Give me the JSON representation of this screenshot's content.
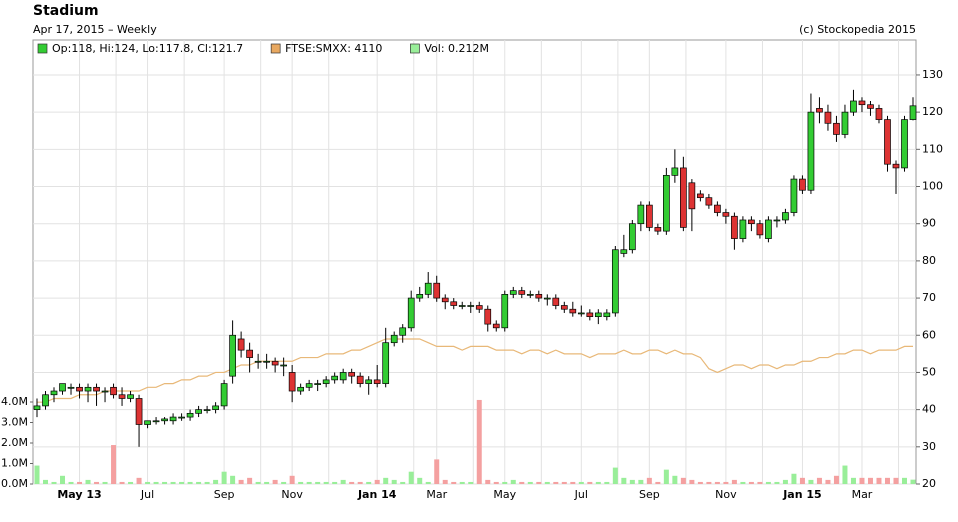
{
  "chart_data": {
    "type": "candlestick",
    "title": "Stadium",
    "subtitle": "Apr 17, 2015 – Weekly",
    "credit": "(c) Stockopedia 2015",
    "legend": [
      {
        "label": "Op:118, Hi:124, Lo:117.8, Cl:121.7",
        "color": "#33cc33"
      },
      {
        "label": "FTSE:SMXX: 4110",
        "color": "#e8a860"
      },
      {
        "label": "Vol: 0.212M",
        "color": "#99ee99"
      }
    ],
    "up_color": "#33cc33",
    "down_color": "#dd3333",
    "vol_up_color": "#99ee99",
    "vol_down_color": "#f4a0a0",
    "ftse_color": "#e8b878",
    "ylim": [
      20,
      139.4
    ],
    "yticks": [
      20,
      30,
      40,
      50,
      60,
      70,
      80,
      90,
      100,
      110,
      120,
      130
    ],
    "vlim": [
      0,
      21.66
    ],
    "vticks": [
      {
        "value": 0,
        "label": "0.0M"
      },
      {
        "value": 1,
        "label": "1.0M"
      },
      {
        "value": 2,
        "label": "2.0M"
      },
      {
        "value": 3,
        "label": "3.0M"
      },
      {
        "value": 4,
        "label": "4.0M"
      }
    ],
    "categories": [
      null,
      null,
      null,
      null,
      null,
      "May 13",
      null,
      null,
      null,
      null,
      null,
      null,
      null,
      "Jul",
      null,
      null,
      null,
      null,
      null,
      null,
      null,
      null,
      "Sep",
      null,
      null,
      null,
      null,
      null,
      null,
      null,
      "Nov",
      null,
      null,
      null,
      null,
      null,
      null,
      null,
      null,
      null,
      "Jan 14",
      null,
      null,
      null,
      null,
      null,
      null,
      "Mar",
      null,
      null,
      null,
      null,
      null,
      null,
      null,
      "May",
      null,
      null,
      null,
      null,
      null,
      null,
      null,
      null,
      "Jul",
      null,
      null,
      null,
      null,
      null,
      null,
      null,
      "Sep",
      null,
      null,
      null,
      null,
      null,
      null,
      null,
      null,
      "Nov",
      null,
      null,
      null,
      null,
      null,
      null,
      null,
      null,
      "Jan 15",
      null,
      null,
      null,
      null,
      null,
      null,
      "Mar",
      null,
      null,
      null,
      null,
      null,
      null
    ],
    "ohlc": [
      [
        40,
        43,
        38,
        41
      ],
      [
        41,
        45,
        40,
        44
      ],
      [
        44,
        46,
        42,
        45
      ],
      [
        45,
        47,
        44,
        47
      ],
      [
        46,
        47,
        44,
        46
      ],
      [
        46,
        47,
        43,
        45
      ],
      [
        45,
        47,
        42,
        46
      ],
      [
        46,
        47,
        41,
        45
      ],
      [
        45,
        46,
        42,
        45
      ],
      [
        46,
        47,
        43,
        44
      ],
      [
        44,
        46,
        41,
        43
      ],
      [
        43,
        45,
        42,
        44
      ],
      [
        43,
        44,
        30,
        36
      ],
      [
        36,
        37,
        35,
        37
      ],
      [
        37,
        38,
        36,
        37
      ],
      [
        37,
        38,
        36,
        37.5
      ],
      [
        37,
        39,
        36,
        38
      ],
      [
        38,
        39,
        37,
        38
      ],
      [
        38,
        40,
        37,
        39
      ],
      [
        39,
        41,
        38,
        40
      ],
      [
        40,
        41,
        39,
        40
      ],
      [
        40,
        42,
        39,
        41
      ],
      [
        41,
        48,
        40,
        47
      ],
      [
        49,
        64,
        47,
        60
      ],
      [
        59,
        61,
        54,
        56
      ],
      [
        56,
        58,
        50,
        54
      ],
      [
        53,
        55,
        51,
        53
      ],
      [
        53,
        55,
        51,
        53
      ],
      [
        53,
        54,
        50,
        52
      ],
      [
        52,
        54,
        49,
        52
      ],
      [
        50,
        52,
        42,
        45
      ],
      [
        45,
        47,
        44,
        46
      ],
      [
        46,
        48,
        45,
        47
      ],
      [
        47,
        48,
        45,
        47
      ],
      [
        47,
        49,
        46,
        48
      ],
      [
        48,
        50,
        47,
        49
      ],
      [
        48,
        51,
        47,
        50
      ],
      [
        50,
        51,
        47,
        49
      ],
      [
        49,
        50,
        46,
        47
      ],
      [
        47,
        49,
        44,
        48
      ],
      [
        48,
        52,
        46,
        47
      ],
      [
        47,
        62,
        46,
        58
      ],
      [
        58,
        61,
        57,
        60
      ],
      [
        60,
        63,
        58,
        62
      ],
      [
        62,
        72,
        61,
        70
      ],
      [
        70,
        73,
        69,
        71
      ],
      [
        71,
        77,
        70,
        74
      ],
      [
        74,
        76,
        69,
        70
      ],
      [
        70,
        71,
        67,
        69
      ],
      [
        69,
        70,
        67,
        68
      ],
      [
        68,
        69,
        67,
        68
      ],
      [
        68,
        69,
        66,
        68
      ],
      [
        68,
        69,
        66,
        67
      ],
      [
        67,
        68,
        61,
        63
      ],
      [
        63,
        64,
        61,
        62
      ],
      [
        62,
        72,
        61,
        71
      ],
      [
        71,
        73,
        70,
        72
      ],
      [
        72,
        73,
        70,
        71
      ],
      [
        71,
        72,
        70,
        71
      ],
      [
        71,
        72,
        69,
        70
      ],
      [
        70,
        71,
        68,
        70
      ],
      [
        70,
        71,
        67,
        68
      ],
      [
        68,
        69,
        66,
        67
      ],
      [
        67,
        69,
        65,
        66
      ],
      [
        66,
        68,
        65,
        66
      ],
      [
        66,
        67,
        64,
        65
      ],
      [
        65,
        67,
        63,
        66
      ],
      [
        65,
        67,
        64,
        66
      ],
      [
        66,
        84,
        65,
        83
      ],
      [
        82,
        87,
        81,
        83
      ],
      [
        83,
        91,
        82,
        90
      ],
      [
        90,
        96,
        88,
        95
      ],
      [
        95,
        96,
        88,
        89
      ],
      [
        89,
        90,
        87,
        88
      ],
      [
        88,
        105,
        87,
        103
      ],
      [
        103,
        110,
        101,
        105
      ],
      [
        105,
        108,
        88,
        89
      ],
      [
        101,
        102,
        88,
        94
      ],
      [
        98,
        99,
        96,
        97
      ],
      [
        97,
        98,
        94,
        95
      ],
      [
        95,
        96,
        92,
        93
      ],
      [
        93,
        94,
        90,
        92
      ],
      [
        92,
        93,
        83,
        86
      ],
      [
        86,
        92,
        85,
        91
      ],
      [
        91,
        92,
        88,
        90
      ],
      [
        90,
        91,
        86,
        87
      ],
      [
        86,
        92,
        85,
        91
      ],
      [
        91,
        92,
        89,
        91
      ],
      [
        91,
        94,
        90,
        93
      ],
      [
        93,
        103,
        92,
        102
      ],
      [
        102,
        103,
        98,
        99
      ],
      [
        99,
        125,
        98,
        120
      ],
      [
        121,
        124,
        117,
        120
      ],
      [
        120,
        122,
        115,
        117
      ],
      [
        117,
        119,
        112,
        114
      ],
      [
        114,
        122,
        113,
        120
      ],
      [
        120,
        126,
        119,
        123
      ],
      [
        123,
        124,
        120,
        122
      ],
      [
        122,
        123,
        119,
        121
      ],
      [
        121,
        122,
        117,
        118
      ],
      [
        118,
        119,
        104,
        106
      ],
      [
        106,
        107,
        98,
        105
      ],
      [
        105,
        119,
        104,
        118
      ],
      [
        118,
        124,
        117.8,
        121.7
      ]
    ],
    "volume": [
      0.9,
      0.2,
      0.1,
      0.4,
      0.1,
      0.1,
      0.2,
      0.1,
      0.1,
      1.9,
      0.1,
      0.1,
      0.3,
      0.1,
      0.1,
      0.1,
      0.1,
      0.1,
      0.1,
      0.1,
      0.1,
      0.2,
      0.6,
      0.4,
      0.2,
      0.3,
      0.1,
      0.1,
      0.2,
      0.1,
      0.4,
      0.1,
      0.1,
      0.1,
      0.1,
      0.1,
      0.2,
      0.1,
      0.1,
      0.1,
      0.2,
      0.3,
      0.2,
      0.1,
      0.6,
      0.3,
      0.1,
      1.2,
      0.2,
      0.1,
      0.1,
      0.1,
      4.1,
      0.2,
      0.1,
      0.1,
      0.2,
      0.1,
      0.1,
      0.1,
      0.1,
      0.1,
      0.1,
      0.1,
      0.1,
      0.1,
      0.1,
      0.1,
      0.8,
      0.3,
      0.2,
      0.2,
      0.3,
      0.1,
      0.7,
      0.4,
      0.3,
      0.2,
      0.1,
      0.1,
      0.1,
      0.1,
      0.2,
      0.1,
      0.1,
      0.1,
      0.1,
      0.1,
      0.2,
      0.5,
      0.3,
      0.2,
      0.3,
      0.2,
      0.4,
      0.9,
      0.3,
      0.3,
      0.3,
      0.3,
      0.3,
      0.3,
      0.3,
      0.212
    ],
    "ftse": [
      42,
      42,
      43,
      43,
      43,
      44,
      44,
      44,
      45,
      45,
      45,
      45,
      45,
      46,
      46,
      47,
      47,
      48,
      48,
      49,
      49,
      50,
      50,
      51,
      52,
      52,
      53,
      53,
      53,
      53,
      53,
      54,
      54,
      54,
      55,
      55,
      55,
      56,
      56,
      57,
      58,
      59,
      59,
      59,
      59,
      59,
      58,
      57,
      57,
      57,
      56,
      57,
      57,
      57,
      56,
      56,
      56,
      55,
      56,
      56,
      55,
      56,
      55,
      55,
      55,
      54,
      55,
      55,
      55,
      56,
      55,
      55,
      56,
      56,
      55,
      56,
      55,
      55,
      54,
      51,
      50,
      51,
      52,
      52,
      51,
      52,
      52,
      51,
      52,
      52,
      53,
      53,
      54,
      54,
      55,
      55,
      56,
      56,
      55,
      56,
      56,
      56,
      57,
      57
    ]
  }
}
